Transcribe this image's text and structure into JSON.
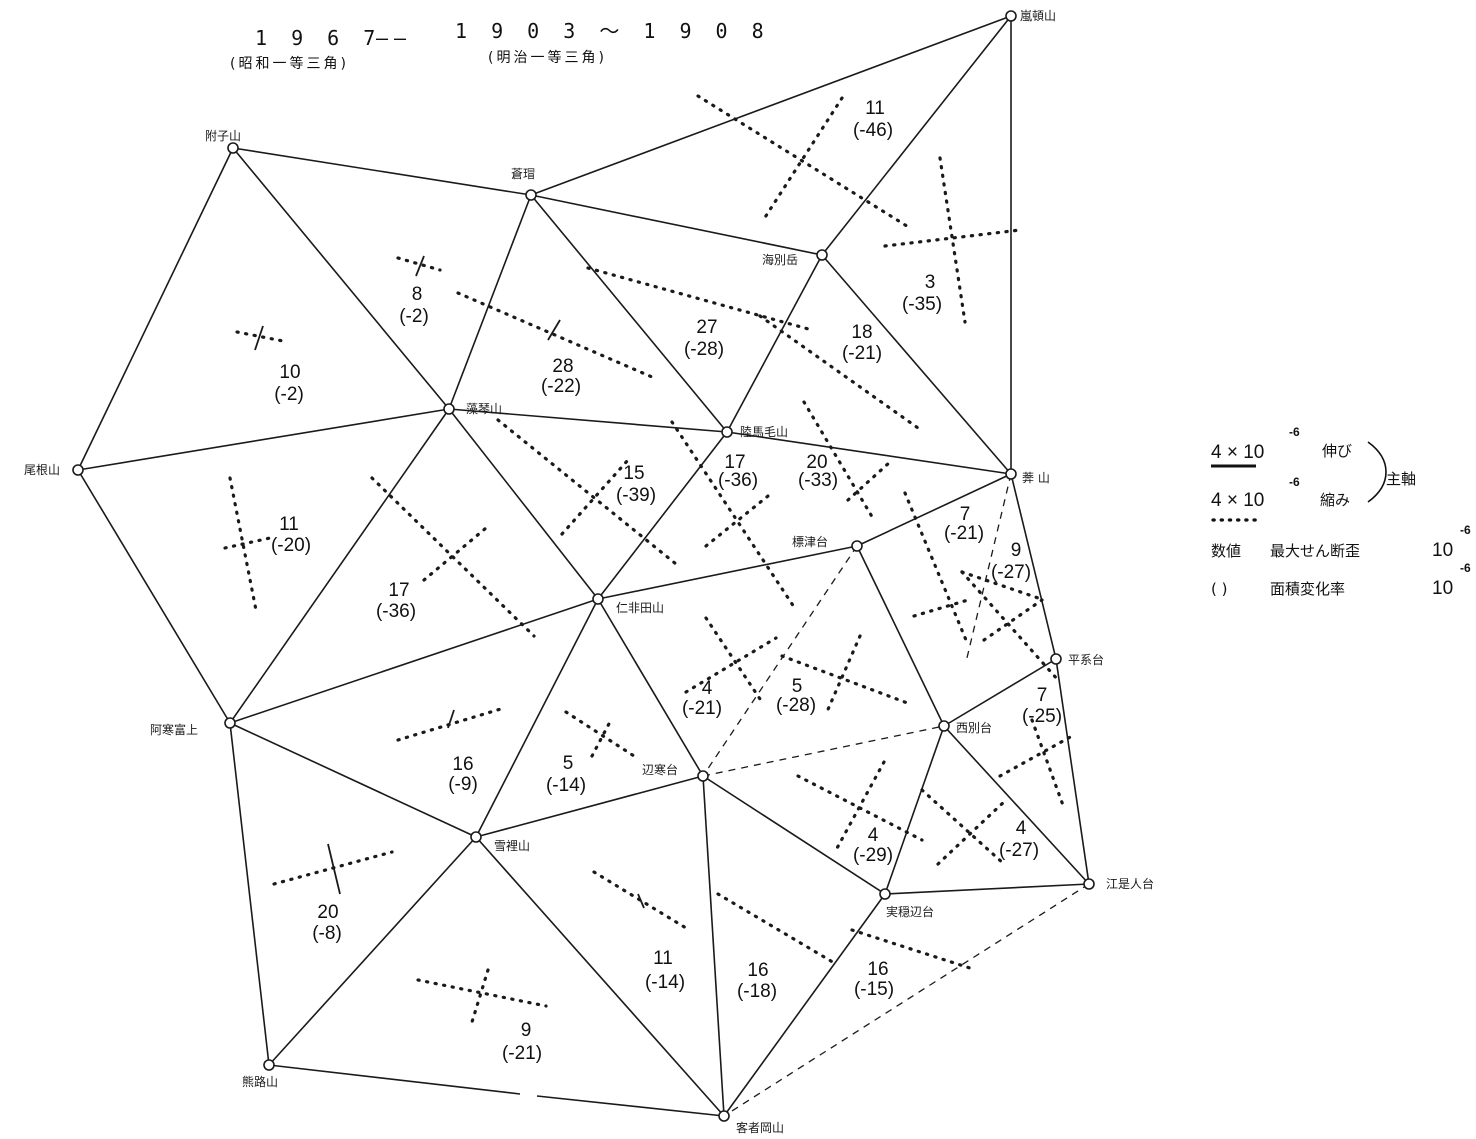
{
  "header": {
    "epoch_new": "1 9 6 7",
    "dash": "——",
    "epoch_old": "1 9 0 3 ～ 1 9 0 8",
    "survey_new": "(昭和一等三角)",
    "survey_old": "(明治一等三角)"
  },
  "stations": [
    {
      "id": "ranetsu",
      "name": "嵐頓山"
    },
    {
      "id": "hakushi",
      "name": "附子山"
    },
    {
      "id": "soujo",
      "name": "蒼瑁"
    },
    {
      "id": "kaibetsu",
      "name": "海別岳"
    },
    {
      "id": "biyo",
      "name": "尾根山"
    },
    {
      "id": "ryoshaku",
      "name": "藻琴山"
    },
    {
      "id": "rokukeshi",
      "name": "陸馬毛山"
    },
    {
      "id": "kitayama",
      "name": "莾 山"
    },
    {
      "id": "kinrindai",
      "name": "標津台"
    },
    {
      "id": "nijin",
      "name": "仁非田山"
    },
    {
      "id": "heikei",
      "name": "平系台"
    },
    {
      "id": "akan",
      "name": "阿寒富上"
    },
    {
      "id": "nishibetsu",
      "name": "西別台"
    },
    {
      "id": "hensei",
      "name": "辺寒台"
    },
    {
      "id": "sekka",
      "name": "雪裡山"
    },
    {
      "id": "keiwa",
      "name": "実穏辺台"
    },
    {
      "id": "etoyo",
      "name": "江是人台"
    },
    {
      "id": "shiroji",
      "name": "熊路山"
    },
    {
      "id": "kasha",
      "name": "客者岡山"
    }
  ],
  "triangles": [
    {
      "id": "t1",
      "shear": "11",
      "area": "(-46)"
    },
    {
      "id": "t2",
      "shear": "3",
      "area": "(-35)"
    },
    {
      "id": "t3",
      "shear": "8",
      "area": "(-2)"
    },
    {
      "id": "t4",
      "shear": "10",
      "area": "(-2)"
    },
    {
      "id": "t5",
      "shear": "28",
      "area": "(-22)"
    },
    {
      "id": "t6",
      "shear": "27",
      "area": "(-28)"
    },
    {
      "id": "t7",
      "shear": "18",
      "area": "(-21)"
    },
    {
      "id": "t8",
      "shear": "11",
      "area": "(-20)"
    },
    {
      "id": "t9",
      "shear": "17",
      "area": "(-36)"
    },
    {
      "id": "t10",
      "shear": "15",
      "area": "(-39)"
    },
    {
      "id": "t11",
      "shear": "17",
      "area": "(-36)"
    },
    {
      "id": "t12",
      "shear": "20",
      "area": "(-33)"
    },
    {
      "id": "t13",
      "shear": "7",
      "area": "(-21)"
    },
    {
      "id": "t14",
      "shear": "9",
      "area": "(-27)"
    },
    {
      "id": "t15",
      "shear": "4",
      "area": "(-21)"
    },
    {
      "id": "t16",
      "shear": "5",
      "area": "(-28)"
    },
    {
      "id": "t17",
      "shear": "7",
      "area": "(-25)"
    },
    {
      "id": "t18",
      "shear": "16",
      "area": "(-9)"
    },
    {
      "id": "t19",
      "shear": "5",
      "area": "(-14)"
    },
    {
      "id": "t20",
      "shear": "4",
      "area": "(-29)"
    },
    {
      "id": "t21",
      "shear": "4",
      "area": "(-27)"
    },
    {
      "id": "t22",
      "shear": "20",
      "area": "(-8)"
    },
    {
      "id": "t23",
      "shear": "11",
      "area": "(-14)"
    },
    {
      "id": "t24",
      "shear": "16",
      "area": "(-18)"
    },
    {
      "id": "t25",
      "shear": "16",
      "area": "(-15)"
    },
    {
      "id": "t26",
      "shear": "9",
      "area": "(-21)"
    }
  ],
  "legend": {
    "scale_value": "4 × 10",
    "exp_neg6": "-6",
    "extension": "伸び",
    "compression": "縮み",
    "principal_axes": "主軸",
    "value_label": "数値",
    "max_shear_label": "最大せん断歪",
    "paren_label": "(    )",
    "area_change_label": "面積変化率",
    "unit": "10"
  }
}
